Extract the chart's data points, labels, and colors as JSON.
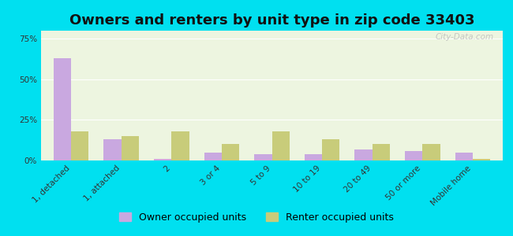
{
  "title": "Owners and renters by unit type in zip code 33403",
  "categories": [
    "1, detached",
    "1, attached",
    "2",
    "3 or 4",
    "5 to 9",
    "10 to 19",
    "20 to 49",
    "50 or more",
    "Mobile home"
  ],
  "owner_values": [
    63,
    13,
    1,
    5,
    4,
    4,
    7,
    6,
    5
  ],
  "renter_values": [
    18,
    15,
    18,
    10,
    18,
    13,
    10,
    10,
    1
  ],
  "owner_color": "#c9a8e0",
  "renter_color": "#c8cc7a",
  "background_outer": "#00e0f0",
  "background_plot": "#edf5e0",
  "yticks": [
    0,
    25,
    50,
    75
  ],
  "ylim": [
    0,
    80
  ],
  "legend_owner": "Owner occupied units",
  "legend_renter": "Renter occupied units",
  "bar_width": 0.35,
  "title_fontsize": 13,
  "tick_fontsize": 7.5,
  "legend_fontsize": 9,
  "watermark": "City-Data.com"
}
